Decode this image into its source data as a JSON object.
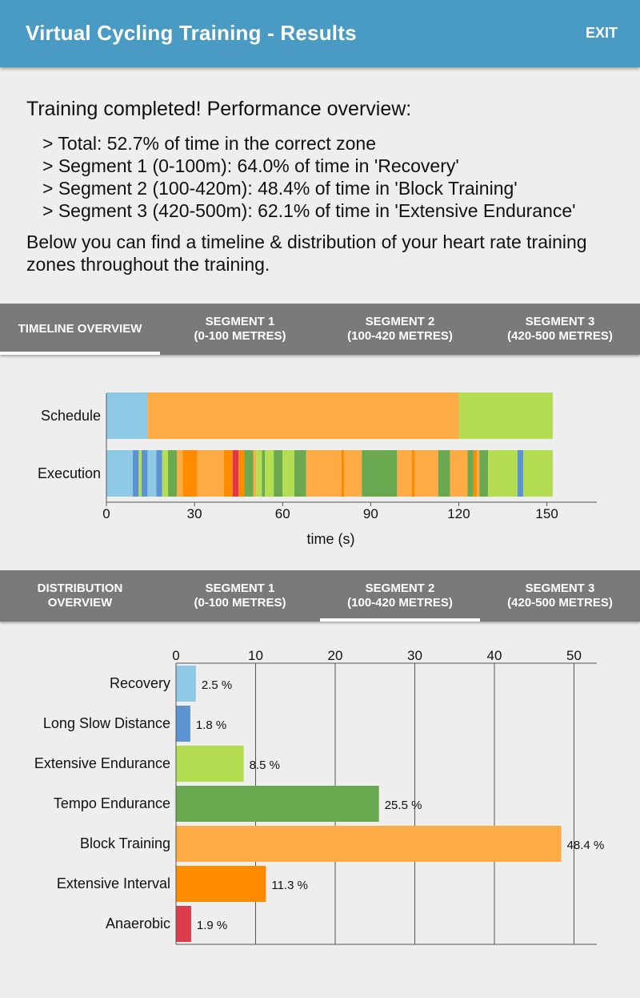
{
  "appbar": {
    "title": "Virtual Cycling Training - Results",
    "exit_label": "EXIT"
  },
  "summary": {
    "heading": "Training completed! Performance overview:",
    "items": [
      "> Total: 52.7% of time in the correct zone",
      "> Segment 1 (0-100m): 64.0% of time in 'Recovery'",
      "> Segment 2 (100-420m): 48.4% of time in 'Block Training'",
      "> Segment 3 (420-500m): 62.1% of time in 'Extensive Endurance'"
    ],
    "intro": "Below you can find a timeline & distribution of your heart rate training zones throughout the training."
  },
  "timeline_tabs": [
    {
      "line1": "TIMELINE OVERVIEW",
      "line2": "",
      "active": true
    },
    {
      "line1": "SEGMENT 1",
      "line2": "(0-100 METRES)",
      "active": false
    },
    {
      "line1": "SEGMENT 2",
      "line2": "(100-420 METRES)",
      "active": false
    },
    {
      "line1": "SEGMENT 3",
      "line2": "(420-500 METRES)",
      "active": false
    }
  ],
  "distribution_tabs": [
    {
      "line1": "DISTRIBUTION",
      "line2": "OVERVIEW",
      "active": false
    },
    {
      "line1": "SEGMENT 1",
      "line2": "(0-100 METRES)",
      "active": false
    },
    {
      "line1": "SEGMENT 2",
      "line2": "(100-420 METRES)",
      "active": true
    },
    {
      "line1": "SEGMENT 3",
      "line2": "(420-500 METRES)",
      "active": false
    }
  ],
  "zone_colors": {
    "Recovery": "#8ecae6",
    "Long Slow Distance": "#5b93d3",
    "Extensive Endurance": "#b5dd52",
    "Tempo Endurance": "#6aa94f",
    "Block Training": "#fdab45",
    "Extensive Interval": "#ff8c00",
    "Anaerobic": "#dd3c4c",
    "Red Line": "#e5354a"
  },
  "chart_data": [
    {
      "type": "timeline",
      "xlabel": "time (s)",
      "xlim": [
        0,
        167
      ],
      "xticks": [
        0,
        30,
        60,
        90,
        120,
        150
      ],
      "rows": [
        {
          "label": "Schedule",
          "segments": [
            {
              "start": 0,
              "end": 14,
              "zone": "Recovery"
            },
            {
              "start": 14,
              "end": 120,
              "zone": "Block Training"
            },
            {
              "start": 120,
              "end": 152,
              "zone": "Extensive Endurance"
            }
          ]
        },
        {
          "label": "Execution",
          "segments": [
            {
              "start": 0,
              "end": 9,
              "zone": "Recovery"
            },
            {
              "start": 9,
              "end": 11,
              "zone": "Long Slow Distance"
            },
            {
              "start": 11,
              "end": 12,
              "zone": "Extensive Endurance"
            },
            {
              "start": 12,
              "end": 14,
              "zone": "Long Slow Distance"
            },
            {
              "start": 14,
              "end": 17,
              "zone": "Recovery"
            },
            {
              "start": 17,
              "end": 19,
              "zone": "Long Slow Distance"
            },
            {
              "start": 19,
              "end": 21,
              "zone": "Extensive Endurance"
            },
            {
              "start": 21,
              "end": 24,
              "zone": "Tempo Endurance"
            },
            {
              "start": 24,
              "end": 26,
              "zone": "Block Training"
            },
            {
              "start": 26,
              "end": 31,
              "zone": "Extensive Interval"
            },
            {
              "start": 31,
              "end": 40,
              "zone": "Block Training"
            },
            {
              "start": 40,
              "end": 43,
              "zone": "Extensive Interval"
            },
            {
              "start": 43,
              "end": 45,
              "zone": "Red Line"
            },
            {
              "start": 45,
              "end": 47,
              "zone": "Extensive Interval"
            },
            {
              "start": 47,
              "end": 50,
              "zone": "Tempo Endurance"
            },
            {
              "start": 50,
              "end": 51,
              "zone": "Block Training"
            },
            {
              "start": 51,
              "end": 53,
              "zone": "Extensive Endurance"
            },
            {
              "start": 53,
              "end": 54,
              "zone": "Tempo Endurance"
            },
            {
              "start": 54,
              "end": 57,
              "zone": "Extensive Endurance"
            },
            {
              "start": 57,
              "end": 60,
              "zone": "Tempo Endurance"
            },
            {
              "start": 60,
              "end": 64,
              "zone": "Extensive Endurance"
            },
            {
              "start": 64,
              "end": 68,
              "zone": "Tempo Endurance"
            },
            {
              "start": 68,
              "end": 80,
              "zone": "Block Training"
            },
            {
              "start": 80,
              "end": 81,
              "zone": "Extensive Interval"
            },
            {
              "start": 81,
              "end": 87,
              "zone": "Block Training"
            },
            {
              "start": 87,
              "end": 99,
              "zone": "Tempo Endurance"
            },
            {
              "start": 99,
              "end": 104,
              "zone": "Block Training"
            },
            {
              "start": 104,
              "end": 105,
              "zone": "Extensive Interval"
            },
            {
              "start": 105,
              "end": 113,
              "zone": "Block Training"
            },
            {
              "start": 113,
              "end": 117,
              "zone": "Tempo Endurance"
            },
            {
              "start": 117,
              "end": 123,
              "zone": "Block Training"
            },
            {
              "start": 123,
              "end": 125,
              "zone": "Tempo Endurance"
            },
            {
              "start": 125,
              "end": 126,
              "zone": "Extensive Interval"
            },
            {
              "start": 126,
              "end": 127,
              "zone": "Block Training"
            },
            {
              "start": 127,
              "end": 130,
              "zone": "Tempo Endurance"
            },
            {
              "start": 130,
              "end": 140,
              "zone": "Extensive Endurance"
            },
            {
              "start": 140,
              "end": 142,
              "zone": "Long Slow Distance"
            },
            {
              "start": 142,
              "end": 152,
              "zone": "Extensive Endurance"
            }
          ]
        }
      ]
    },
    {
      "type": "bar",
      "orientation": "horizontal",
      "categories": [
        "Recovery",
        "Long Slow Distance",
        "Extensive Endurance",
        "Tempo Endurance",
        "Block Training",
        "Extensive Interval",
        "Anaerobic"
      ],
      "values": [
        2.5,
        1.8,
        8.5,
        25.5,
        48.4,
        11.3,
        1.9
      ],
      "value_labels": [
        "2.5 %",
        "1.8 %",
        "8.5 %",
        "25.5 %",
        "48.4 %",
        "11.3 %",
        "1.9 %"
      ],
      "xticks": [
        0,
        10,
        20,
        30,
        40,
        50
      ],
      "xlim": [
        0,
        53
      ],
      "grid": true,
      "xaxis_position": "top"
    }
  ]
}
